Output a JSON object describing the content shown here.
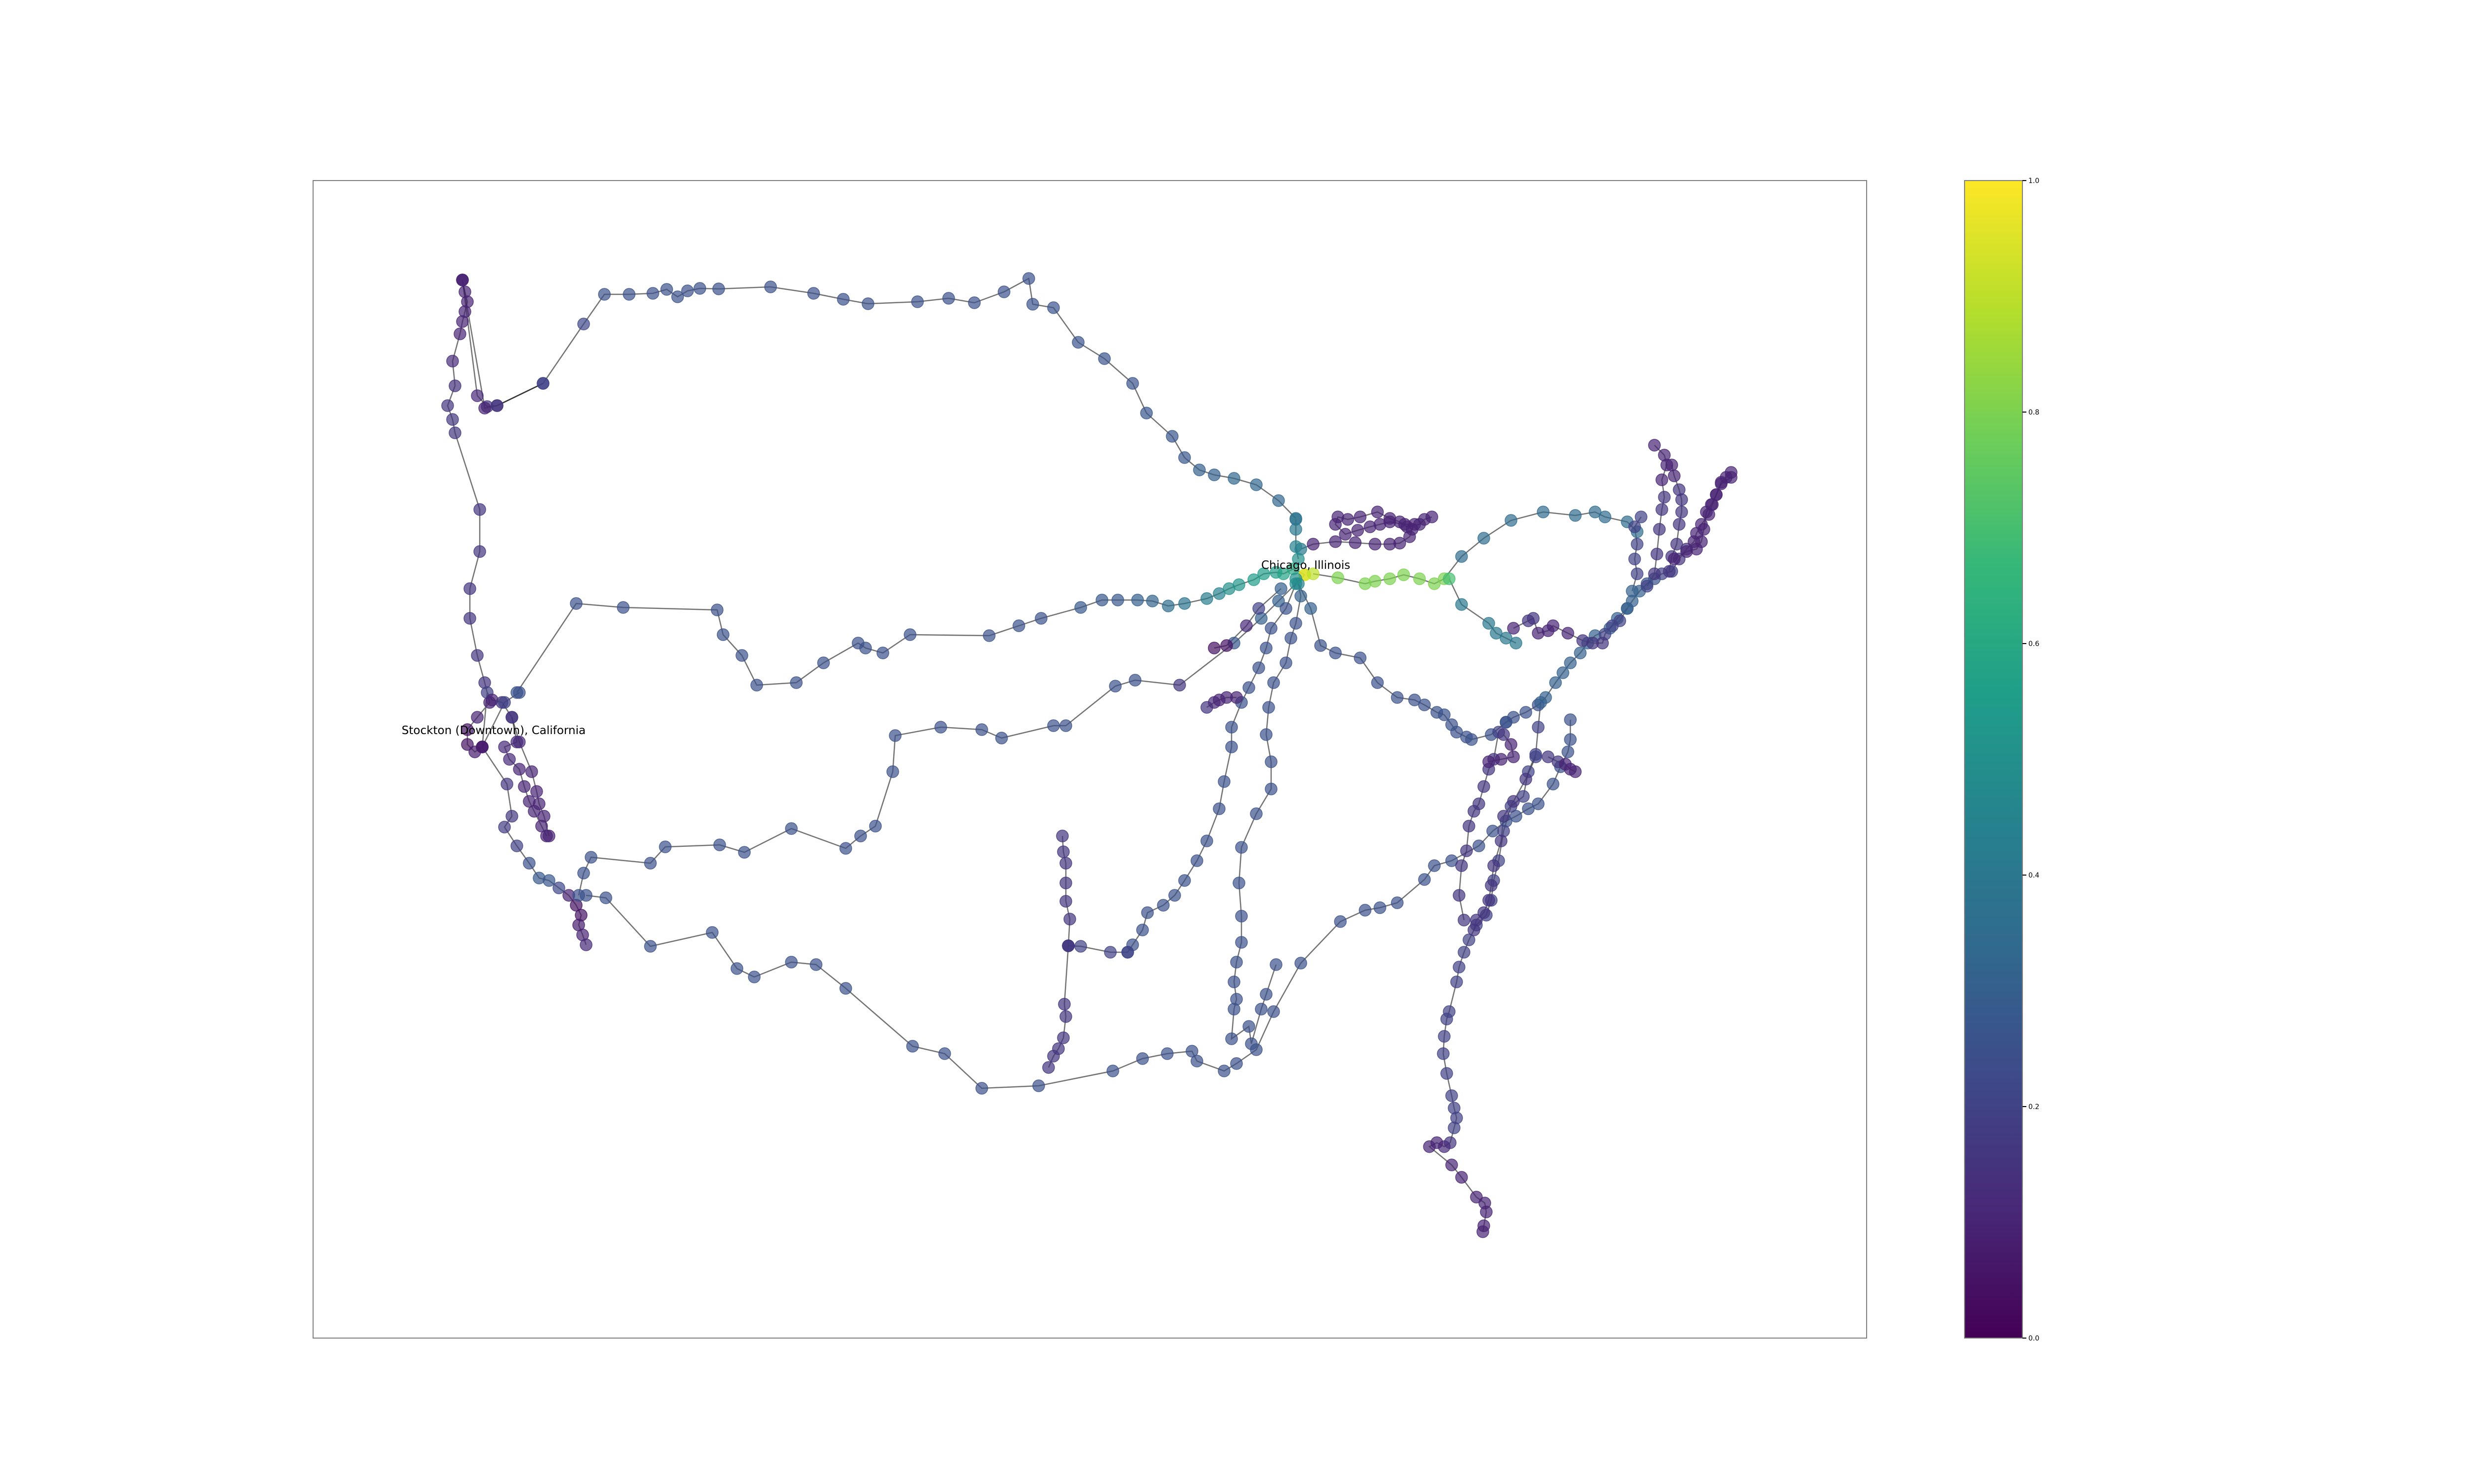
{
  "labels": {
    "chicago": "Chicago, Illinois",
    "stockton": "Stockton (Downtown), California"
  },
  "colorbar": {
    "min": 0.0,
    "max": 1.0,
    "ticks": [
      "0.0",
      "0.2",
      "0.4",
      "0.6",
      "0.8",
      "1.0"
    ],
    "colormap": "viridis",
    "stops": [
      "#440154",
      "#482878",
      "#3e4989",
      "#31688e",
      "#26828e",
      "#1f9e89",
      "#35b779",
      "#6ece58",
      "#b5de2b",
      "#fde725"
    ]
  },
  "colors": {
    "node_alpha": 0.7,
    "edge": "#000000",
    "frame": "#808080"
  }
}
